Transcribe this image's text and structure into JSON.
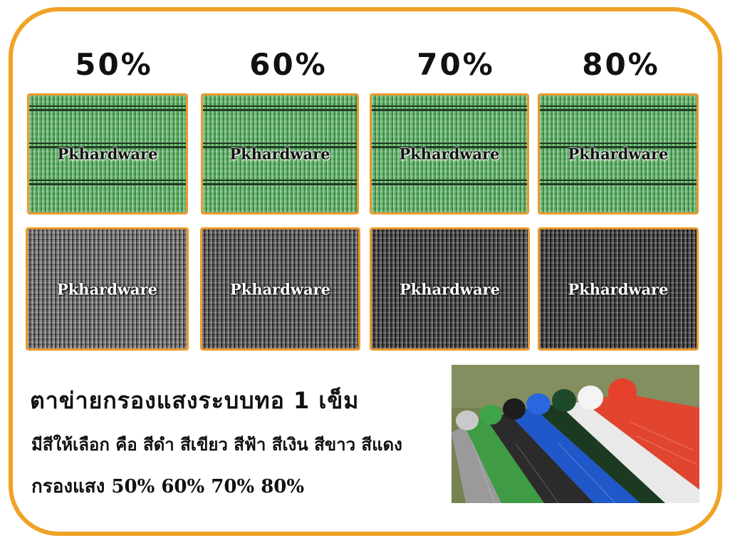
{
  "percentages": [
    "50%",
    "60%",
    "70%",
    "80%"
  ],
  "swatches": {
    "green": [
      {
        "shade": 0.5,
        "watermark": "Pkhardware"
      },
      {
        "shade": 0.6,
        "watermark": "Pkhardware"
      },
      {
        "shade": 0.7,
        "watermark": "Pkhardware"
      },
      {
        "shade": 0.8,
        "watermark": "Pkhardware"
      }
    ],
    "black": [
      {
        "shade": 0.5,
        "watermark": "Pkhardware"
      },
      {
        "shade": 0.6,
        "watermark": "Pkhardware"
      },
      {
        "shade": 0.7,
        "watermark": "Pkhardware"
      },
      {
        "shade": 0.8,
        "watermark": "Pkhardware"
      }
    ]
  },
  "text": {
    "heading": "ตาข่ายกรองแสงระบบทอ 1 เข็ม",
    "colors_line": "มีสีให้เลือก คือ สีดำ สีเขียว สีฟ้า สีเงิน สีขาว สีแดง",
    "filter_line": "กรองแสง 50% 60% 70% 80%"
  },
  "colors": {
    "frame": "#f0a327",
    "net_green": "#4aa052",
    "net_black": "#2f2f2f",
    "net_blue": "#1f5fd0",
    "net_silver": "#b8b8b8",
    "net_white": "#f2f2f2",
    "net_red": "#e5412d"
  }
}
